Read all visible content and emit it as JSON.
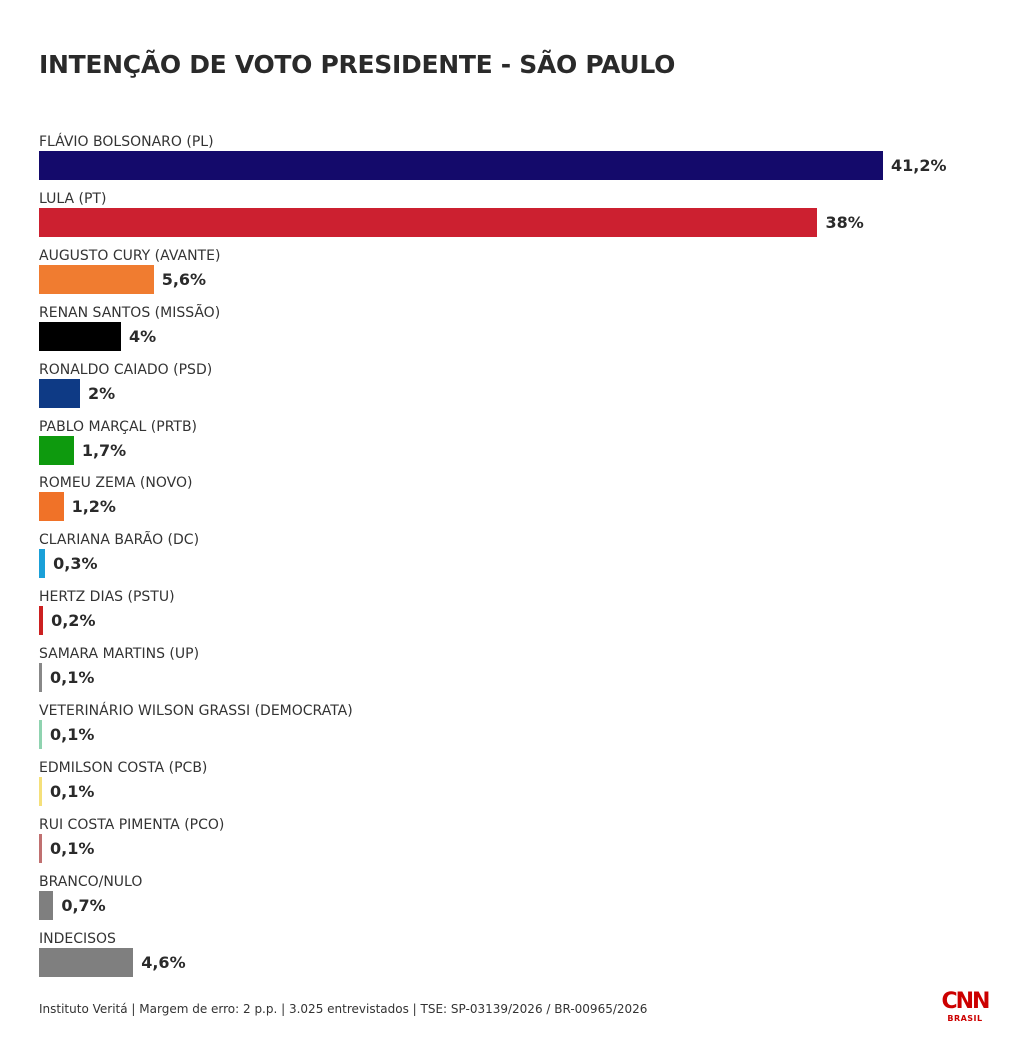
{
  "chart_data": {
    "type": "bar",
    "orientation": "horizontal",
    "title": "INTENÇÃO DE VOTO PRESIDENTE - SÃO PAULO",
    "categories": [
      "FLÁVIO BOLSONARO (PL)",
      "LULA (PT)",
      "AUGUSTO CURY (AVANTE)",
      "RENAN SANTOS (MISSÃO)",
      "RONALDO CAIADO (PSD)",
      "PABLO MARÇAL (PRTB)",
      "ROMEU ZEMA (NOVO)",
      "CLARIANA BARÃO (DC)",
      "HERTZ DIAS (PSTU)",
      "SAMARA MARTINS (UP)",
      "VETERINÁRIO WILSON GRASSI (DEMOCRATA)",
      "EDMILSON COSTA (PCB)",
      "RUI COSTA PIMENTA (PCO)",
      "BRANCO/NULO",
      "INDECISOS"
    ],
    "values": [
      41.2,
      38,
      5.6,
      4,
      2,
      1.7,
      1.2,
      0.3,
      0.2,
      0.1,
      0.1,
      0.1,
      0.1,
      0.7,
      4.6
    ],
    "value_labels": [
      "41,2%",
      "38%",
      "5,6%",
      "4%",
      "2%",
      "1,7%",
      "1,2%",
      "0,3%",
      "0,2%",
      "0,1%",
      "0,1%",
      "0,1%",
      "0,1%",
      "0,7%",
      "4,6%"
    ],
    "colors": [
      "#140a6b",
      "#cc2030",
      "#f07c30",
      "#000000",
      "#0e3a85",
      "#0e9a0e",
      "#f07228",
      "#1aa0d8",
      "#cc2020",
      "#888888",
      "#8fd3b0",
      "#f5e07a",
      "#c07070",
      "#7f7f7f",
      "#7f7f7f"
    ],
    "xlim": [
      0,
      41.2
    ],
    "grid": false,
    "legend": "none"
  },
  "footer": "Instituto Veritá | Margem de erro: 2 p.p. | 3.025 entrevistados | TSE: SP-03139/2026 / BR-00965/2026",
  "logo": {
    "main": "CNN",
    "sub": "BRASIL"
  }
}
